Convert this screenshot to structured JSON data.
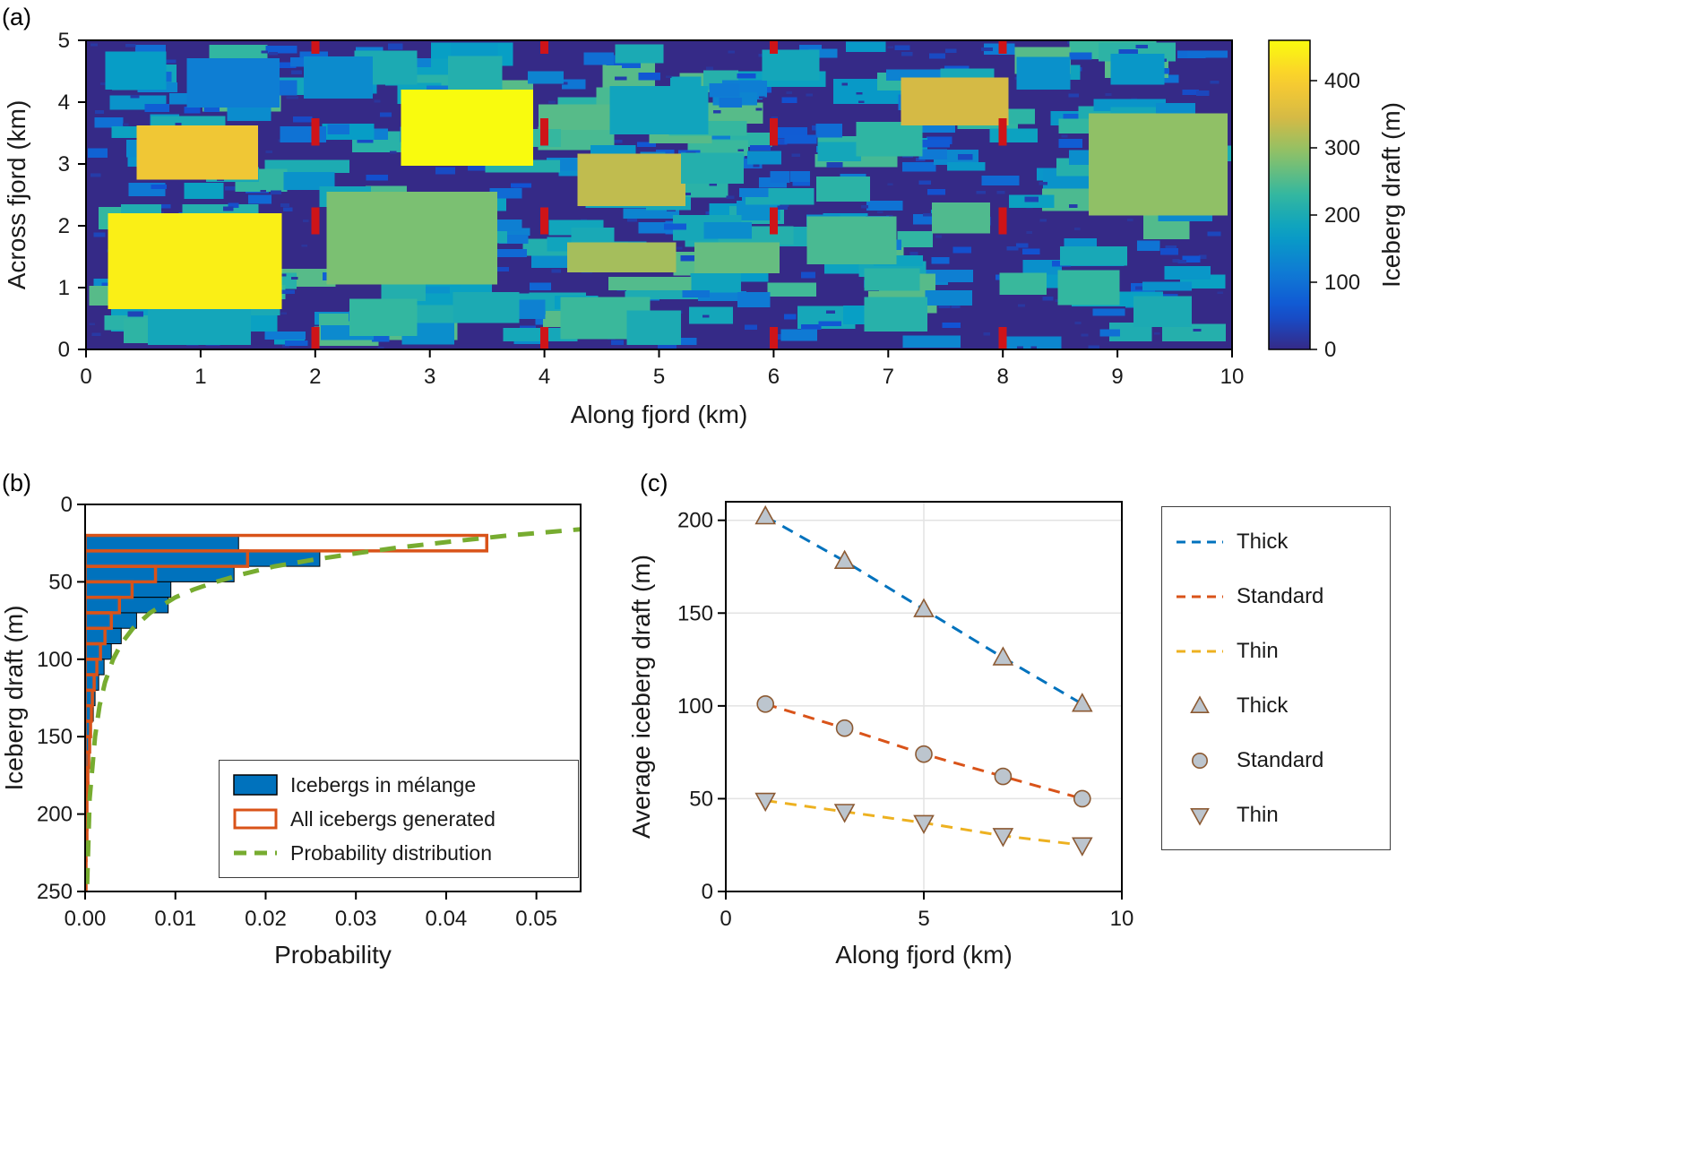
{
  "figure": {
    "panel_a_tag": "(a)",
    "panel_b_tag": "(b)",
    "panel_c_tag": "(c)"
  },
  "chart_data": [
    {
      "id": "melange-map",
      "type": "heatmap",
      "xlabel": "Along fjord (km)",
      "ylabel": "Across fjord (km)",
      "xlim": [
        0,
        10
      ],
      "ylim": [
        0,
        5
      ],
      "xticks": [
        0,
        1,
        2,
        3,
        4,
        5,
        6,
        7,
        8,
        9,
        10
      ],
      "yticks": [
        0,
        1,
        2,
        3,
        4,
        5
      ],
      "colorbar": {
        "label": "Iceberg draft (m)",
        "ticks": [
          0,
          100,
          200,
          300,
          400
        ],
        "range": [
          0,
          460
        ]
      },
      "red_markers": {
        "x_positions": [
          2,
          4,
          6,
          8
        ],
        "segments": [
          [
            4.78,
            5.0
          ],
          [
            3.3,
            3.74
          ],
          [
            1.86,
            2.3
          ],
          [
            0,
            0.36
          ]
        ],
        "color": "#cf1418",
        "width_km": 0.07
      },
      "large_icebergs": [
        {
          "x": 0.19,
          "y": 0.65,
          "w": 1.52,
          "h": 1.55,
          "draft": 445
        },
        {
          "x": 0.44,
          "y": 2.75,
          "w": 1.06,
          "h": 0.87,
          "draft": 385
        },
        {
          "x": 0.88,
          "y": 3.91,
          "w": 0.81,
          "h": 0.8,
          "draft": 120
        },
        {
          "x": 0.17,
          "y": 4.2,
          "w": 0.53,
          "h": 0.62,
          "draft": 170
        },
        {
          "x": 0.54,
          "y": 0.07,
          "w": 0.9,
          "h": 0.58,
          "draft": 190
        },
        {
          "x": 2.75,
          "y": 2.97,
          "w": 1.15,
          "h": 1.23,
          "draft": 460
        },
        {
          "x": 2.1,
          "y": 1.05,
          "w": 1.49,
          "h": 1.5,
          "draft": 280
        },
        {
          "x": 2.3,
          "y": 0.22,
          "w": 0.59,
          "h": 0.6,
          "draft": 230
        },
        {
          "x": 3.2,
          "y": 0.43,
          "w": 0.58,
          "h": 0.5,
          "draft": 200
        },
        {
          "x": 2.34,
          "y": 4.28,
          "w": 0.55,
          "h": 0.55,
          "draft": 200
        },
        {
          "x": 3.16,
          "y": 4.2,
          "w": 0.47,
          "h": 0.55,
          "draft": 210
        },
        {
          "x": 1.9,
          "y": 4.06,
          "w": 0.6,
          "h": 0.68,
          "draft": 140
        },
        {
          "x": 4.29,
          "y": 2.32,
          "w": 0.94,
          "h": 0.85,
          "draft": 330
        },
        {
          "x": 4.2,
          "y": 1.25,
          "w": 0.95,
          "h": 0.48,
          "draft": 310
        },
        {
          "x": 4.14,
          "y": 0.17,
          "w": 0.78,
          "h": 0.68,
          "draft": 235
        },
        {
          "x": 4.57,
          "y": 3.48,
          "w": 0.86,
          "h": 0.78,
          "draft": 185
        },
        {
          "x": 5.31,
          "y": 1.23,
          "w": 0.74,
          "h": 0.5,
          "draft": 265
        },
        {
          "x": 4.72,
          "y": 0.07,
          "w": 0.47,
          "h": 0.56,
          "draft": 200
        },
        {
          "x": 5.19,
          "y": 2.68,
          "w": 0.55,
          "h": 0.5,
          "draft": 210
        },
        {
          "x": 5.9,
          "y": 4.35,
          "w": 0.5,
          "h": 0.5,
          "draft": 190
        },
        {
          "x": 6.29,
          "y": 1.38,
          "w": 0.78,
          "h": 0.77,
          "draft": 245
        },
        {
          "x": 6.72,
          "y": 3.12,
          "w": 0.58,
          "h": 0.56,
          "draft": 225
        },
        {
          "x": 7.11,
          "y": 3.62,
          "w": 0.94,
          "h": 0.78,
          "draft": 345
        },
        {
          "x": 7.38,
          "y": 1.88,
          "w": 0.51,
          "h": 0.5,
          "draft": 250
        },
        {
          "x": 6.79,
          "y": 0.29,
          "w": 0.55,
          "h": 0.56,
          "draft": 215
        },
        {
          "x": 8.75,
          "y": 2.17,
          "w": 1.21,
          "h": 1.65,
          "draft": 295
        },
        {
          "x": 8.48,
          "y": 0.72,
          "w": 0.54,
          "h": 0.56,
          "draft": 230
        },
        {
          "x": 8.94,
          "y": 4.28,
          "w": 0.47,
          "h": 0.5,
          "draft": 160
        },
        {
          "x": 8.12,
          "y": 4.2,
          "w": 0.47,
          "h": 0.53,
          "draft": 150
        },
        {
          "x": 9.14,
          "y": 0.36,
          "w": 0.51,
          "h": 0.5,
          "draft": 200
        }
      ],
      "small_iceberg_field": {
        "count": 700,
        "seed": 11,
        "max_draft": 255
      }
    },
    {
      "id": "draft-histogram",
      "type": "bar",
      "orientation": "horizontal",
      "xlabel": "Probability",
      "ylabel": "Iceberg draft (m)",
      "xlim": [
        0,
        0.0549
      ],
      "ylim": [
        0,
        250
      ],
      "xtick_values": [
        0,
        0.01,
        0.02,
        0.03,
        0.04,
        0.05
      ],
      "xtick_labels": [
        "0.00",
        "0.01",
        "0.02",
        "0.03",
        "0.04",
        "0.05"
      ],
      "yticks": [
        0,
        50,
        100,
        150,
        200,
        250
      ],
      "bin_width": 10,
      "bins": [
        20,
        30,
        40,
        50,
        60,
        70,
        80,
        90,
        100,
        110,
        120,
        130,
        140,
        150,
        160,
        170,
        180,
        190,
        200,
        210,
        220,
        230,
        240
      ],
      "melange": [
        0.017,
        0.026,
        0.0165,
        0.0095,
        0.0092,
        0.0057,
        0.004,
        0.0029,
        0.0021,
        0.0015,
        0.0011,
        0.0009,
        0.0007,
        0.0006,
        0.0005,
        0.0004,
        0.0004,
        0.0003,
        0.0003,
        0.0002,
        0.0002,
        0.0001,
        0.0001
      ],
      "all_generated": [
        0.0445,
        0.018,
        0.0078,
        0.0052,
        0.0038,
        0.0029,
        0.0022,
        0.0017,
        0.0013,
        0.001,
        0.0008,
        0.0007,
        0.0006,
        0.0005,
        0.0004,
        0.0003,
        0.0003,
        0.0002,
        0.0002,
        0.0002,
        0.0001,
        0.0001,
        0.0001
      ],
      "distribution": [
        [
          13,
          0.062
        ],
        [
          16,
          0.055
        ],
        [
          20,
          0.047
        ],
        [
          24,
          0.0405
        ],
        [
          28,
          0.0345
        ],
        [
          32,
          0.0295
        ],
        [
          36,
          0.025
        ],
        [
          40,
          0.021
        ],
        [
          45,
          0.0175
        ],
        [
          50,
          0.0145
        ],
        [
          55,
          0.012
        ],
        [
          60,
          0.01
        ],
        [
          70,
          0.0072
        ],
        [
          80,
          0.0053
        ],
        [
          90,
          0.004
        ],
        [
          100,
          0.0031
        ],
        [
          115,
          0.0022
        ],
        [
          130,
          0.0016
        ],
        [
          150,
          0.0011
        ],
        [
          170,
          0.0008
        ],
        [
          190,
          0.0005
        ],
        [
          210,
          0.0004
        ],
        [
          230,
          0.0003
        ],
        [
          250,
          0.0002
        ]
      ],
      "colors": {
        "melange": "#0072BD",
        "all_generated": "#D95319",
        "distribution": "#77AC30"
      },
      "legend": [
        {
          "label": "Icebergs in mélange",
          "swatch": "bar-filled",
          "color": "#0072BD"
        },
        {
          "label": "All icebergs generated",
          "swatch": "bar-outline",
          "color": "#D95319"
        },
        {
          "label": "Probability distribution",
          "swatch": "dash",
          "color": "#77AC30",
          "width": 5,
          "dasharray": "14 9"
        }
      ]
    },
    {
      "id": "average-draft-profile",
      "type": "line",
      "xlabel": "Along fjord (km)",
      "ylabel": "Average iceberg draft (m)",
      "xlim": [
        0,
        10
      ],
      "ylim": [
        0,
        210
      ],
      "xticks": [
        0,
        5,
        10
      ],
      "yticks": [
        0,
        50,
        100,
        150,
        200
      ],
      "grid_x": [
        5
      ],
      "grid_y": [
        50,
        100,
        150,
        200
      ],
      "marker_fill": "#bcc5ce",
      "marker_edge": "#8c5a33",
      "series": [
        {
          "name": "Thick",
          "color": "#0072BD",
          "marker": "triangle-up",
          "x": [
            1,
            3,
            5,
            7,
            9
          ],
          "y": [
            202,
            178,
            152,
            126,
            101
          ]
        },
        {
          "name": "Standard",
          "color": "#D95319",
          "marker": "circle",
          "x": [
            1,
            3,
            5,
            7,
            9
          ],
          "y": [
            101,
            88,
            74,
            62,
            50
          ]
        },
        {
          "name": "Thin",
          "color": "#EDB120",
          "marker": "triangle-down",
          "x": [
            1,
            3,
            5,
            7,
            9
          ],
          "y": [
            49,
            43,
            37,
            30,
            25
          ]
        }
      ],
      "legend": [
        {
          "label": "Thick",
          "swatch": "dash",
          "color": "#0072BD",
          "width": 3,
          "dasharray": "10 7"
        },
        {
          "label": "Standard",
          "swatch": "dash",
          "color": "#D95319",
          "width": 3,
          "dasharray": "10 7"
        },
        {
          "label": "Thin",
          "swatch": "dash",
          "color": "#EDB120",
          "width": 3,
          "dasharray": "10 7"
        },
        {
          "label": "Thick",
          "swatch": "triangle-up",
          "fill": "#bcc5ce",
          "edge": "#8c5a33"
        },
        {
          "label": "Standard",
          "swatch": "circle",
          "fill": "#bcc5ce",
          "edge": "#8c5a33"
        },
        {
          "label": "Thin",
          "swatch": "triangle-down",
          "fill": "#bcc5ce",
          "edge": "#8c5a33"
        }
      ]
    }
  ]
}
